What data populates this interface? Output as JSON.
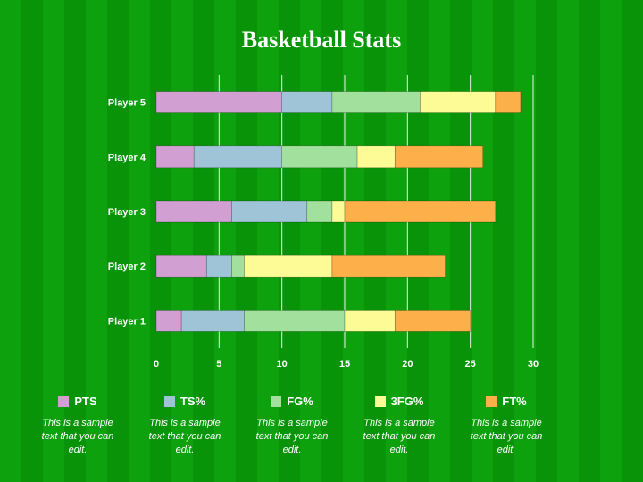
{
  "title": "Basketball Stats",
  "chart_data": {
    "type": "bar",
    "orientation": "horizontal",
    "stacked": true,
    "title": "Basketball Stats",
    "categories": [
      "Player 1",
      "Player 2",
      "Player 3",
      "Player 4",
      "Player 5"
    ],
    "series": [
      {
        "name": "PTS",
        "color": "#d19fd1",
        "values": [
          2,
          4,
          6,
          3,
          10
        ]
      },
      {
        "name": "TS%",
        "color": "#9fc4d8",
        "values": [
          5,
          2,
          6,
          7,
          4
        ]
      },
      {
        "name": "FG%",
        "color": "#a2e09e",
        "values": [
          8,
          1,
          2,
          6,
          7
        ]
      },
      {
        "name": "3FG%",
        "color": "#fdfb96",
        "values": [
          4,
          7,
          1,
          3,
          6
        ]
      },
      {
        "name": "FT%",
        "color": "#fdb04a",
        "values": [
          6,
          9,
          12,
          7,
          2
        ]
      }
    ],
    "xlim": [
      0,
      30
    ],
    "xticks": [
      "0",
      "5",
      "10",
      "15",
      "20",
      "25",
      "30"
    ],
    "grid": true,
    "legend_position": "bottom"
  },
  "legend_texts": [
    "This is a sample text that you can edit.",
    "This is a sample text that you can edit.",
    "This is a sample text that you can edit.",
    "This is a sample text that you can edit.",
    "This is a sample text that you can edit."
  ]
}
